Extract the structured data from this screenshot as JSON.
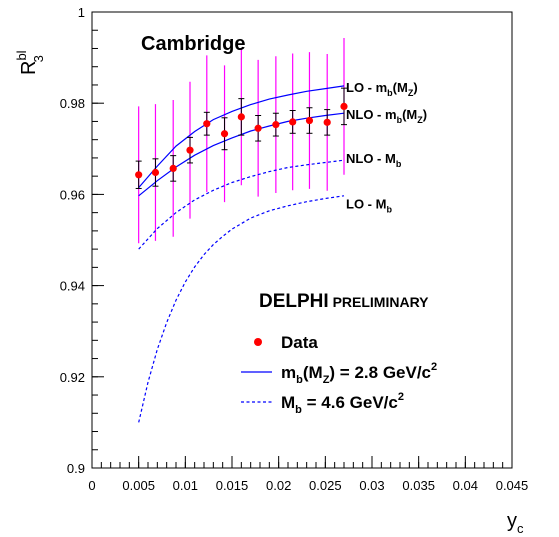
{
  "chart_data": {
    "type": "scatter",
    "ylabel": {
      "base": "R",
      "sup": "bl",
      "sub": "3"
    },
    "xlabel": {
      "base": "y",
      "sub": "c"
    },
    "xlim": [
      0,
      0.045
    ],
    "ylim": [
      0.9,
      1.0
    ],
    "x_ticks": [
      "0",
      "0.005",
      "0.01",
      "0.015",
      "0.02",
      "0.025",
      "0.03",
      "0.035",
      "0.04",
      "0.045"
    ],
    "x_tick_values": [
      0,
      0.005,
      0.01,
      0.015,
      0.02,
      0.025,
      0.03,
      0.035,
      0.04,
      0.045
    ],
    "y_ticks": [
      "0.9",
      "0.92",
      "0.94",
      "0.96",
      "0.98",
      "1"
    ],
    "y_tick_values": [
      0.9,
      0.92,
      0.94,
      0.96,
      0.98,
      1.0
    ],
    "grid": false,
    "corner_label": "Cambridge",
    "experiment_label": {
      "main": "DELPHI",
      "secondary": "PRELIMINARY"
    },
    "colors": {
      "data": "#ff0000",
      "stat_error": "#000000",
      "sys_error": "#ff00ff",
      "curves": "#0000ff"
    },
    "series": [
      {
        "name": "Data",
        "kind": "points",
        "x": [
          0.005,
          0.0068,
          0.0087,
          0.0105,
          0.0123,
          0.0142,
          0.016,
          0.0178,
          0.0197,
          0.0215,
          0.0233,
          0.0252,
          0.027
        ],
        "y": [
          0.9643,
          0.9648,
          0.9657,
          0.9697,
          0.9755,
          0.9733,
          0.977,
          0.9745,
          0.9753,
          0.9759,
          0.9762,
          0.9758,
          0.9793
        ],
        "stat_err": [
          0.003,
          0.003,
          0.0028,
          0.0028,
          0.0025,
          0.0035,
          0.004,
          0.0028,
          0.0025,
          0.0025,
          0.0028,
          0.0028,
          0.004
        ],
        "sys_err": [
          0.015,
          0.015,
          0.015,
          0.015,
          0.015,
          0.015,
          0.015,
          0.015,
          0.015,
          0.015,
          0.015,
          0.015,
          0.015
        ]
      },
      {
        "kind": "curve",
        "style": "solid",
        "label": "LO - m_b(M_Z)",
        "x": [
          0.005,
          0.007,
          0.009,
          0.011,
          0.013,
          0.015,
          0.017,
          0.019,
          0.021,
          0.023,
          0.025,
          0.027
        ],
        "y": [
          0.9615,
          0.9662,
          0.9706,
          0.9738,
          0.9764,
          0.9782,
          0.9797,
          0.9809,
          0.9818,
          0.9826,
          0.9832,
          0.9838
        ]
      },
      {
        "kind": "curve",
        "style": "solid",
        "label": "NLO - m_b(M_Z)",
        "x": [
          0.005,
          0.007,
          0.009,
          0.011,
          0.013,
          0.015,
          0.017,
          0.019,
          0.021,
          0.023,
          0.025,
          0.027
        ],
        "y": [
          0.9597,
          0.963,
          0.966,
          0.9686,
          0.9707,
          0.9724,
          0.9739,
          0.975,
          0.976,
          0.9767,
          0.9773,
          0.9778
        ]
      },
      {
        "kind": "curve",
        "style": "dashed",
        "label": "NLO - M_b",
        "x": [
          0.005,
          0.007,
          0.009,
          0.011,
          0.013,
          0.015,
          0.017,
          0.019,
          0.021,
          0.023,
          0.025,
          0.027
        ],
        "y": [
          0.948,
          0.9525,
          0.956,
          0.9588,
          0.9609,
          0.9626,
          0.9639,
          0.965,
          0.9659,
          0.9665,
          0.967,
          0.9675
        ]
      },
      {
        "kind": "curve",
        "style": "dashed",
        "label": "LO - M_b",
        "x": [
          0.005,
          0.006,
          0.007,
          0.008,
          0.009,
          0.01,
          0.011,
          0.012,
          0.013,
          0.014,
          0.015,
          0.017,
          0.019,
          0.021,
          0.023,
          0.025,
          0.027
        ],
        "y": [
          0.91,
          0.9188,
          0.926,
          0.9319,
          0.9368,
          0.9408,
          0.9441,
          0.9468,
          0.949,
          0.9508,
          0.9524,
          0.9548,
          0.9564,
          0.9575,
          0.9584,
          0.9591,
          0.9597
        ]
      }
    ],
    "curve_labels": [
      {
        "base": "LO - m",
        "sub": "b",
        "mid": "(M",
        "sub2": "Z",
        "end": ")",
        "y": 0.9836
      },
      {
        "base": "NLO - m",
        "sub": "b",
        "mid": "(M",
        "sub2": "Z",
        "end": ")",
        "y": 0.9776
      },
      {
        "base": "NLO - M",
        "sub": "b",
        "mid": "",
        "sub2": "",
        "end": "",
        "y": 0.968
      },
      {
        "base": "LO - M",
        "sub": "b",
        "mid": "",
        "sub2": "",
        "end": "",
        "y": 0.958
      }
    ],
    "legend": [
      {
        "marker": "dot",
        "base": "Data",
        "sub": "",
        "mid": "",
        "sub2": "",
        "end": "",
        "sup": ""
      },
      {
        "marker": "solid",
        "base": "m",
        "sub": "b",
        "mid": "(M",
        "sub2": "Z",
        "end": ") = 2.8 GeV/c",
        "sup": "2"
      },
      {
        "marker": "dashed",
        "base": "M",
        "sub": "b",
        "mid": "",
        "sub2": "",
        "end": " = 4.6 GeV/c",
        "sup": "2"
      }
    ]
  }
}
